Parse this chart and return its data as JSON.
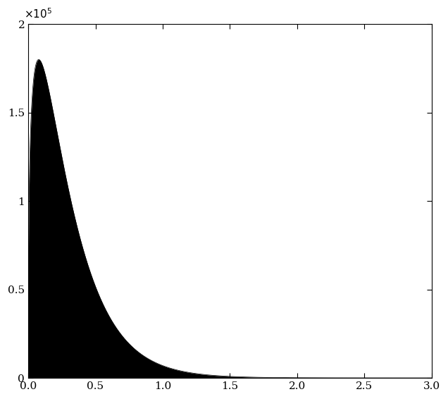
{
  "title": "",
  "xlabel": "",
  "ylabel": "",
  "xlim": [
    0,
    3
  ],
  "ylim": [
    0,
    200000
  ],
  "xticks": [
    0,
    0.5,
    1,
    1.5,
    2,
    2.5,
    3
  ],
  "yticks": [
    0,
    50000,
    100000,
    150000,
    200000
  ],
  "ytick_labels": [
    "0",
    "0.5",
    "1",
    "1.5",
    "2"
  ],
  "fill_color": "#000000",
  "line_color": "#000000",
  "background_color": "#ffffff",
  "peak_y": 180000,
  "alpha": 1.35,
  "beta": 4.5,
  "figsize": [
    6.36,
    5.66
  ],
  "dpi": 100
}
